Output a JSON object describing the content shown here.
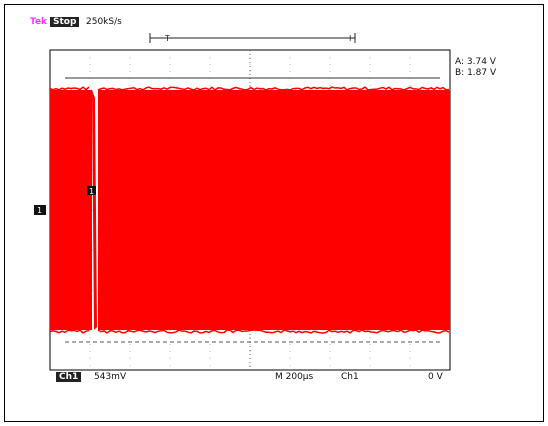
{
  "header": {
    "brand": "Tek",
    "run_state": "Stop",
    "sample_rate": "250kS/s"
  },
  "cursors": {
    "a": "A: 3.74 V",
    "b": "B: 1.87 V"
  },
  "markers": {
    "trigger_position": "T",
    "channel_ground": "1",
    "cursor_tag": "1"
  },
  "footer": {
    "channel": "Ch1",
    "volts_per_div": "543mV",
    "timebase": "M 200μs",
    "trigger_source": "Ch1",
    "trigger_level": "0 V"
  },
  "chart_data": {
    "type": "line",
    "title": "",
    "xlabel": "",
    "ylabel": "",
    "grid": true,
    "divisions": {
      "x": 10,
      "y": 8
    },
    "envelope": {
      "upper_div": 3.0,
      "lower_div": -3.0,
      "cursor_a_div": 3.3,
      "cursor_b_div": -3.3
    },
    "gap": {
      "start_div": 1.05,
      "end_div": 1.2
    },
    "colors": {
      "trace": "#ff0000",
      "grid": "#888888",
      "frame": "#000000"
    }
  }
}
